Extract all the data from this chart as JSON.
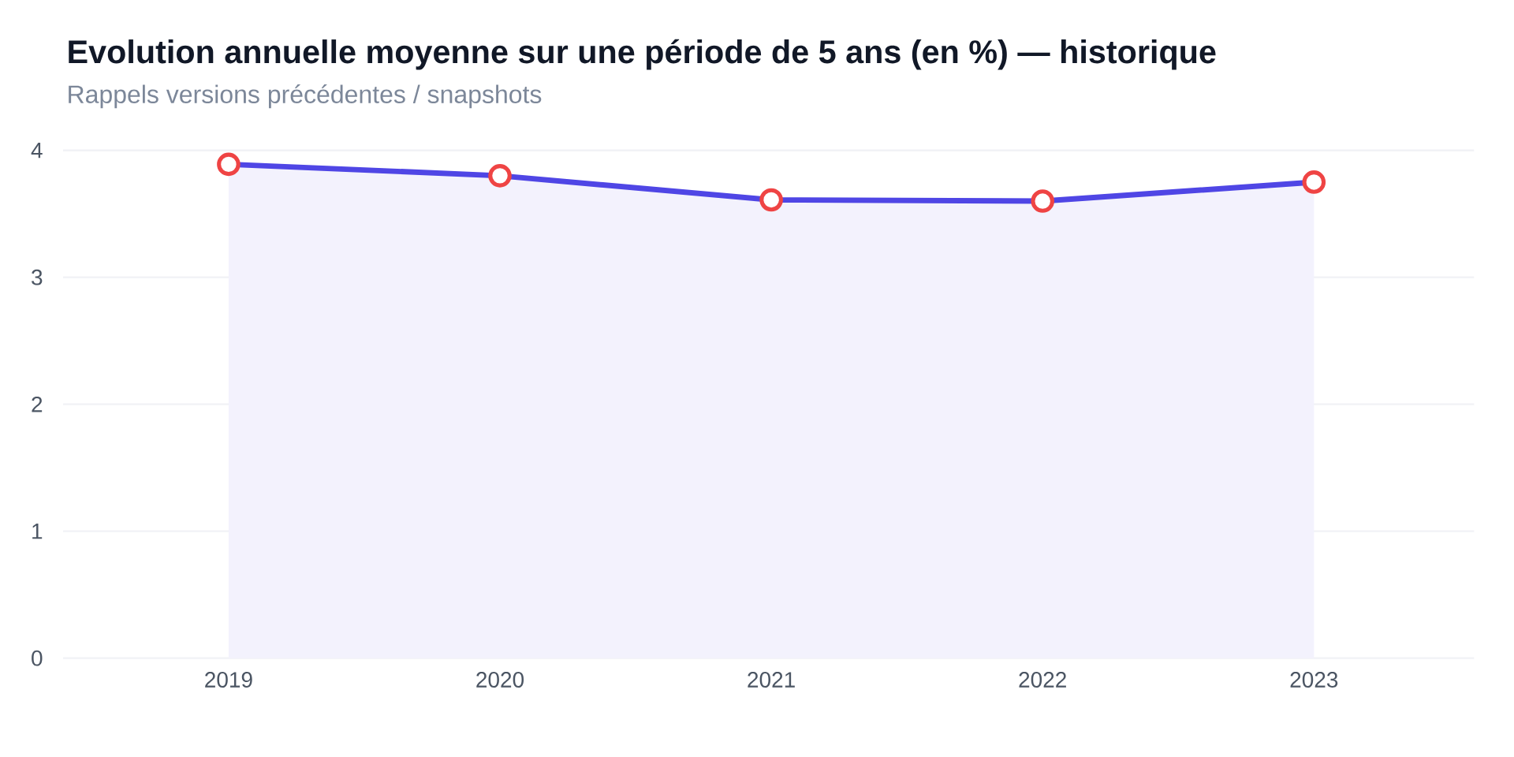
{
  "chart_data": {
    "type": "area",
    "title": "Evolution annuelle moyenne sur une période de 5 ans (en %) — historique",
    "subtitle": "Rappels versions précédentes / snapshots",
    "categories": [
      "2019",
      "2020",
      "2021",
      "2022",
      "2023"
    ],
    "series": [
      {
        "color": "#4f46e5",
        "values": [
          3.89,
          3.8,
          3.61,
          3.6,
          3.75
        ]
      }
    ],
    "ylim": [
      0,
      4
    ],
    "yticks": [
      0,
      1,
      2,
      3,
      4
    ],
    "grid": "y",
    "marker": "circle",
    "line_style": "solid"
  }
}
